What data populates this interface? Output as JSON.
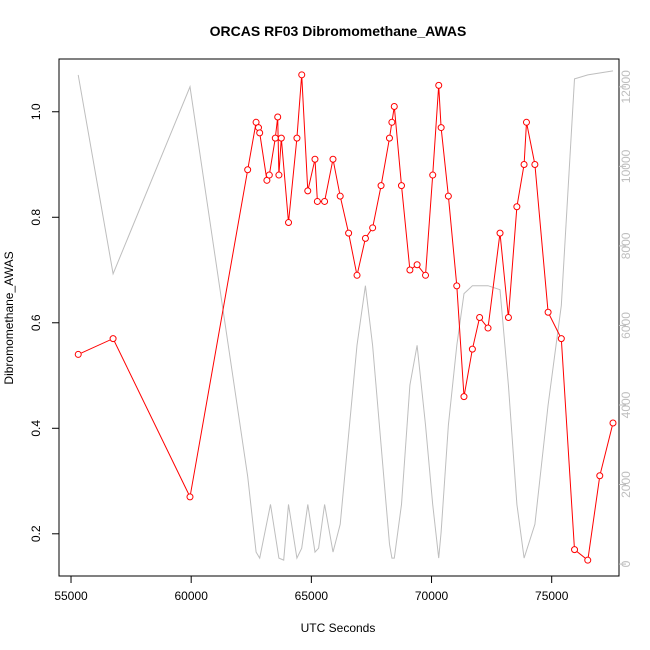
{
  "chart_data": {
    "type": "line",
    "title": "ORCAS RF03 Dibromomethane_AWAS",
    "xlabel": "UTC Seconds",
    "ylabel": "Dibromomethane_AWAS",
    "xlim": [
      54500,
      77800
    ],
    "ylim": [
      0.12,
      1.1
    ],
    "y2lim": [
      -300,
      12700
    ],
    "x_ticks": [
      55000,
      60000,
      65000,
      70000,
      75000
    ],
    "y_ticks": [
      0.2,
      0.4,
      0.6,
      0.8,
      1.0
    ],
    "y2_ticks": [
      0,
      2000,
      4000,
      6000,
      8000,
      10000,
      12000
    ],
    "colors": {
      "primary": "#ff0000",
      "secondary": "#bebebe",
      "axis": "#000000"
    },
    "series": [
      {
        "axis": "left",
        "values": [
          [
            55300,
            0.54
          ],
          [
            56750,
            0.57
          ],
          [
            59950,
            0.27
          ],
          [
            62350,
            0.89
          ],
          [
            62700,
            0.98
          ],
          [
            62800,
            0.97
          ],
          [
            62850,
            0.96
          ],
          [
            63150,
            0.87
          ],
          [
            63250,
            0.88
          ],
          [
            63500,
            0.95
          ],
          [
            63600,
            0.99
          ],
          [
            63650,
            0.88
          ],
          [
            63750,
            0.95
          ],
          [
            64050,
            0.79
          ],
          [
            64400,
            0.95
          ],
          [
            64600,
            1.07
          ],
          [
            64850,
            0.85
          ],
          [
            65150,
            0.91
          ],
          [
            65250,
            0.83
          ],
          [
            65550,
            0.83
          ],
          [
            65900,
            0.91
          ],
          [
            66200,
            0.84
          ],
          [
            66550,
            0.77
          ],
          [
            66900,
            0.69
          ],
          [
            67250,
            0.76
          ],
          [
            67550,
            0.78
          ],
          [
            67900,
            0.86
          ],
          [
            68250,
            0.95
          ],
          [
            68350,
            0.98
          ],
          [
            68450,
            1.01
          ],
          [
            68750,
            0.86
          ],
          [
            69100,
            0.7
          ],
          [
            69400,
            0.71
          ],
          [
            69750,
            0.69
          ],
          [
            70050,
            0.88
          ],
          [
            70300,
            1.05
          ],
          [
            70400,
            0.97
          ],
          [
            70700,
            0.84
          ],
          [
            71050,
            0.67
          ],
          [
            71350,
            0.46
          ],
          [
            71700,
            0.55
          ],
          [
            72000,
            0.61
          ],
          [
            72350,
            0.59
          ],
          [
            72850,
            0.77
          ],
          [
            73200,
            0.61
          ],
          [
            73550,
            0.82
          ],
          [
            73850,
            0.9
          ],
          [
            73950,
            0.98
          ],
          [
            74300,
            0.9
          ],
          [
            74850,
            0.62
          ],
          [
            75400,
            0.57
          ],
          [
            75950,
            0.17
          ],
          [
            76500,
            0.15
          ],
          [
            77000,
            0.31
          ],
          [
            77550,
            0.41
          ]
        ]
      },
      {
        "axis": "right",
        "values": [
          [
            55300,
            12300
          ],
          [
            56750,
            7300
          ],
          [
            59950,
            12000
          ],
          [
            62350,
            2200
          ],
          [
            62700,
            300
          ],
          [
            62850,
            150
          ],
          [
            63300,
            1500
          ],
          [
            63650,
            150
          ],
          [
            63850,
            100
          ],
          [
            64050,
            1500
          ],
          [
            64400,
            150
          ],
          [
            64600,
            400
          ],
          [
            64850,
            1500
          ],
          [
            65150,
            300
          ],
          [
            65300,
            400
          ],
          [
            65550,
            1500
          ],
          [
            65900,
            300
          ],
          [
            66200,
            1000
          ],
          [
            66900,
            5500
          ],
          [
            67250,
            7000
          ],
          [
            67550,
            5500
          ],
          [
            68250,
            500
          ],
          [
            68350,
            150
          ],
          [
            68450,
            150
          ],
          [
            68750,
            1500
          ],
          [
            69100,
            4500
          ],
          [
            69400,
            5500
          ],
          [
            69750,
            3500
          ],
          [
            70050,
            1500
          ],
          [
            70300,
            150
          ],
          [
            70400,
            800
          ],
          [
            70700,
            3500
          ],
          [
            71050,
            5500
          ],
          [
            71350,
            6800
          ],
          [
            71700,
            7000
          ],
          [
            72350,
            7000
          ],
          [
            72850,
            6900
          ],
          [
            73200,
            4500
          ],
          [
            73550,
            1500
          ],
          [
            73850,
            150
          ],
          [
            74300,
            1000
          ],
          [
            74850,
            4000
          ],
          [
            75400,
            6500
          ],
          [
            75950,
            12200
          ],
          [
            76500,
            12300
          ],
          [
            77550,
            12400
          ]
        ]
      }
    ]
  }
}
